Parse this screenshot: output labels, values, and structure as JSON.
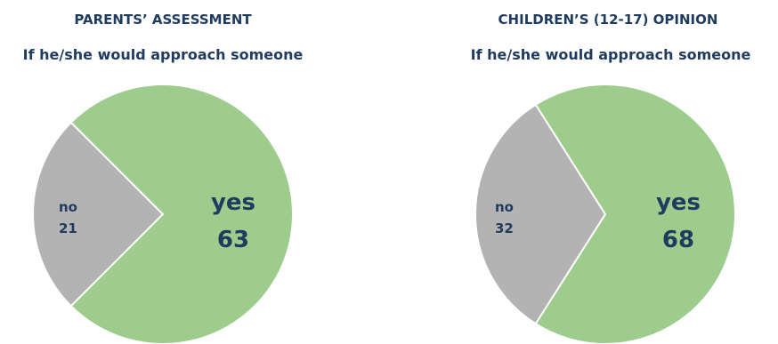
{
  "chart_data": [
    {
      "type": "pie",
      "title": "PARENTS’ ASSESSMENT",
      "subtitle": "If he/she would approach someone",
      "slices": [
        {
          "label": "no",
          "value": 21,
          "color": "#b3b3b3"
        },
        {
          "label": "yes",
          "value": 63,
          "color": "#9dcc8c"
        }
      ]
    },
    {
      "type": "pie",
      "title": "CHILDREN’S (12-17) OPINION",
      "subtitle": "If he/she would approach someone",
      "slices": [
        {
          "label": "no",
          "value": 32,
          "color": "#b3b3b3"
        },
        {
          "label": "yes",
          "value": 68,
          "color": "#9dcc8c"
        }
      ]
    }
  ]
}
